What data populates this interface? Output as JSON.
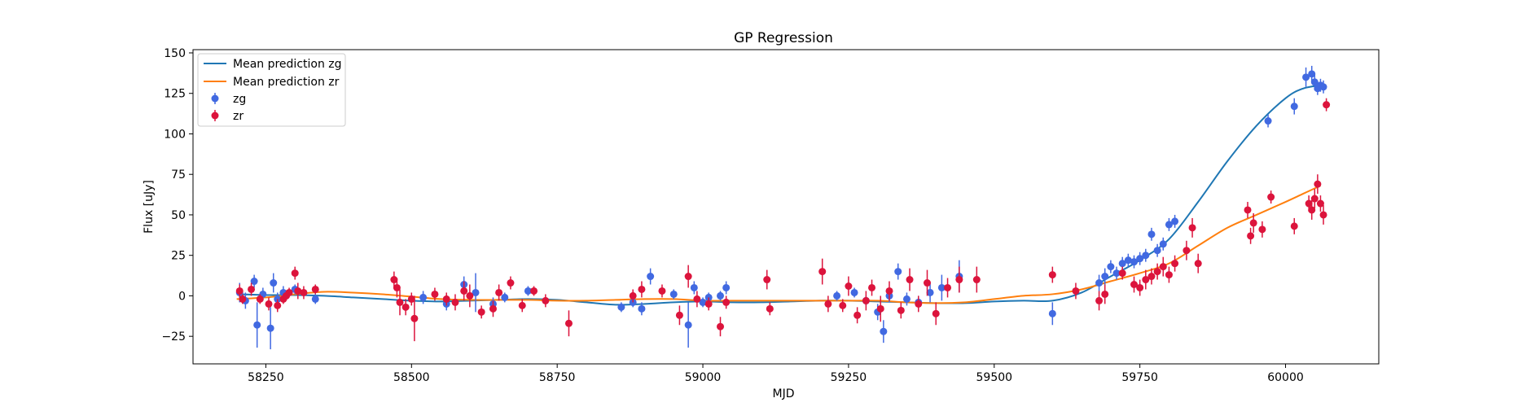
{
  "chart_data": {
    "type": "line",
    "title": "GP Regression",
    "xlabel": "MJD",
    "ylabel": "Flux [uJy]",
    "xlim": [
      58125,
      60160
    ],
    "ylim": [
      -42,
      152
    ],
    "xticks": [
      58250,
      58500,
      58750,
      59000,
      59250,
      59500,
      59750,
      60000
    ],
    "yticks": [
      -25,
      0,
      25,
      50,
      75,
      100,
      125,
      150
    ],
    "grid": false,
    "legend_position": "upper left",
    "colors": {
      "zg_line": "#1f77b4",
      "zr_line": "#ff7f0e",
      "zg_points": "#4169e1",
      "zr_points": "#dc143c"
    },
    "series": [
      {
        "name": "Mean prediction zg",
        "kind": "line",
        "color": "#1f77b4",
        "x": [
          58200,
          58250,
          58300,
          58350,
          58400,
          58450,
          58500,
          58550,
          58600,
          58650,
          58700,
          58750,
          58800,
          58850,
          58900,
          58950,
          59000,
          59050,
          59100,
          59150,
          59200,
          59250,
          59300,
          59350,
          59400,
          59450,
          59500,
          59550,
          59600,
          59650,
          59700,
          59750,
          59800,
          59850,
          59900,
          59950,
          60000,
          60030,
          60060
        ],
        "y": [
          1,
          0.5,
          0.5,
          0,
          -1,
          -2,
          -3,
          -3.5,
          -3,
          -2.5,
          -2,
          -2.5,
          -4,
          -5.5,
          -5,
          -4,
          -3.5,
          -4,
          -4,
          -3.5,
          -3,
          -3,
          -3.5,
          -4,
          -4.5,
          -4.5,
          -3.5,
          -3,
          -3,
          2,
          12,
          22,
          35,
          58,
          83,
          105,
          122,
          128,
          130
        ]
      },
      {
        "name": "Mean prediction zr",
        "kind": "line",
        "color": "#ff7f0e",
        "x": [
          58200,
          58250,
          58300,
          58350,
          58400,
          58450,
          58500,
          58550,
          58600,
          58650,
          58700,
          58750,
          58800,
          58850,
          58900,
          58950,
          59000,
          59050,
          59100,
          59150,
          59200,
          59250,
          59300,
          59350,
          59400,
          59450,
          59500,
          59550,
          59600,
          59650,
          59700,
          59750,
          59800,
          59850,
          59900,
          59950,
          60000,
          60030,
          60060
        ],
        "y": [
          -2,
          -1,
          1,
          2.5,
          2,
          1,
          -0.5,
          -2,
          -2.5,
          -2.5,
          -2.5,
          -3,
          -3,
          -2.5,
          -2,
          -2,
          -3,
          -3,
          -3,
          -3,
          -3,
          -3,
          -3,
          -4,
          -4.5,
          -4,
          -2,
          0,
          1,
          4,
          9,
          14,
          20,
          31,
          42,
          50,
          58,
          63,
          68
        ]
      },
      {
        "name": "zg",
        "kind": "errorbar",
        "color": "#4169e1",
        "x": [
          58205,
          58215,
          58230,
          58235,
          58245,
          58258,
          58263,
          58270,
          58280,
          58300,
          58335,
          58520,
          58560,
          58590,
          58610,
          58640,
          58660,
          58700,
          58860,
          58880,
          58895,
          58910,
          58950,
          58975,
          58985,
          59000,
          59010,
          59030,
          59040,
          59230,
          59260,
          59280,
          59300,
          59310,
          59320,
          59335,
          59350,
          59370,
          59390,
          59410,
          59440,
          59600,
          59680,
          59690,
          59700,
          59710,
          59720,
          59730,
          59740,
          59750,
          59760,
          59770,
          59780,
          59790,
          59800,
          59810,
          59970,
          60015,
          60035,
          60045,
          60050,
          60055,
          60060,
          60065
        ],
        "y": [
          2,
          -3,
          9,
          -18,
          1,
          -20,
          8,
          -2,
          2,
          4,
          -2,
          -1,
          -5,
          7,
          2,
          -5,
          -1,
          3,
          -7,
          -4,
          -8,
          12,
          1,
          -18,
          5,
          -4,
          -1,
          0,
          5,
          0,
          2,
          -3,
          -10,
          -22,
          0,
          15,
          -2,
          -4,
          2,
          5,
          12,
          -11,
          8,
          12,
          18,
          14,
          20,
          22,
          21,
          23,
          25,
          38,
          28,
          32,
          44,
          46,
          108,
          117,
          135,
          137,
          132,
          128,
          130,
          129
        ],
        "yerr": [
          6,
          5,
          4,
          14,
          4,
          13,
          6,
          4,
          4,
          3,
          3,
          4,
          4,
          5,
          12,
          4,
          3,
          3,
          3,
          3,
          4,
          5,
          3,
          14,
          4,
          3,
          3,
          3,
          4,
          3,
          3,
          3,
          5,
          7,
          4,
          5,
          4,
          4,
          6,
          8,
          10,
          7,
          5,
          5,
          4,
          4,
          4,
          4,
          4,
          4,
          4,
          4,
          4,
          4,
          4,
          4,
          4,
          5,
          6,
          5,
          5,
          4,
          4,
          4
        ]
      },
      {
        "name": "zr",
        "kind": "errorbar",
        "color": "#dc143c",
        "x": [
          58205,
          58210,
          58225,
          58240,
          58255,
          58270,
          58280,
          58285,
          58290,
          58300,
          58305,
          58315,
          58335,
          58470,
          58475,
          58480,
          58490,
          58500,
          58505,
          58540,
          58560,
          58575,
          58590,
          58600,
          58620,
          58640,
          58650,
          58670,
          58690,
          58710,
          58730,
          58770,
          58880,
          58895,
          58930,
          58960,
          58975,
          58990,
          59010,
          59030,
          59040,
          59110,
          59115,
          59205,
          59215,
          59240,
          59250,
          59265,
          59280,
          59290,
          59305,
          59320,
          59340,
          59355,
          59370,
          59385,
          59400,
          59420,
          59440,
          59470,
          59600,
          59640,
          59680,
          59690,
          59720,
          59740,
          59750,
          59760,
          59770,
          59780,
          59790,
          59800,
          59810,
          59830,
          59840,
          59850,
          59935,
          59940,
          59945,
          59960,
          59975,
          60015,
          60040,
          60045,
          60050,
          60055,
          60060,
          60065,
          60070
        ],
        "y": [
          3,
          -2,
          4,
          -2,
          -5,
          -6,
          -2,
          0,
          2,
          14,
          3,
          2,
          4,
          10,
          5,
          -4,
          -7,
          -2,
          -14,
          1,
          -2,
          -4,
          3,
          0,
          -10,
          -8,
          2,
          8,
          -6,
          3,
          -3,
          -17,
          0,
          4,
          3,
          -12,
          12,
          -2,
          -5,
          -19,
          -4,
          10,
          -8,
          15,
          -5,
          -6,
          6,
          -12,
          -3,
          5,
          -8,
          3,
          -9,
          10,
          -5,
          8,
          -11,
          5,
          10,
          10,
          13,
          3,
          -3,
          1,
          14,
          7,
          5,
          10,
          12,
          15,
          18,
          13,
          20,
          28,
          42,
          20,
          53,
          37,
          45,
          41,
          61,
          43,
          57,
          53,
          60,
          69,
          57,
          50,
          118
        ],
        "yerr": [
          4,
          3,
          4,
          3,
          4,
          4,
          3,
          3,
          3,
          4,
          5,
          4,
          3,
          5,
          6,
          8,
          5,
          4,
          14,
          4,
          4,
          5,
          6,
          7,
          4,
          5,
          5,
          4,
          4,
          3,
          4,
          8,
          4,
          5,
          4,
          6,
          7,
          5,
          4,
          6,
          4,
          6,
          4,
          8,
          5,
          4,
          6,
          5,
          6,
          5,
          8,
          6,
          5,
          7,
          5,
          8,
          7,
          6,
          8,
          8,
          5,
          5,
          6,
          6,
          4,
          5,
          5,
          6,
          5,
          5,
          6,
          5,
          5,
          6,
          6,
          6,
          5,
          5,
          6,
          5,
          4,
          5,
          5,
          6,
          6,
          6,
          5,
          6,
          4
        ]
      }
    ]
  }
}
